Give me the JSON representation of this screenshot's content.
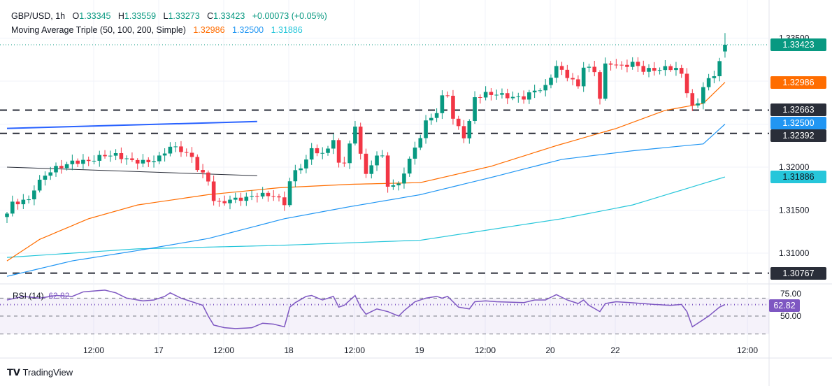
{
  "header": {
    "symbol": "GBP/USD, 1h",
    "o_label": "O",
    "o": "1.33345",
    "h_label": "H",
    "h": "1.33559",
    "l_label": "L",
    "l": "1.33273",
    "c_label": "C",
    "c": "1.33423",
    "change": "+0.00073 (+0.05%)",
    "ma_title": "Moving Average Triple (50, 100, 200, Simple)",
    "ma50": "1.32986",
    "ma100": "1.32500",
    "ma200": "1.31886"
  },
  "rsi": {
    "title": "RSI (14)",
    "value": "62.82",
    "levels": [
      "75.00",
      "50.00"
    ]
  },
  "brand": "TradingView",
  "colors": {
    "bull": "#089981",
    "bear": "#f23645",
    "ma50": "#ff6d00",
    "ma100": "#2196f3",
    "ma200": "#26c6da",
    "rsi": "#7e57c2",
    "level": "#2a2e39"
  },
  "chart_data": {
    "type": "candlestick",
    "title": "GBP/USD, 1h",
    "ylim": [
      1.305,
      1.3365
    ],
    "price_ticks": [
      "1.33500",
      "1.32000",
      "1.31500",
      "1.31000"
    ],
    "x_ticks": [
      "12:00",
      "17",
      "12:00",
      "18",
      "12:00",
      "19",
      "12:00",
      "20",
      "22",
      "12:00"
    ],
    "price_labels": [
      {
        "text": "1.33423",
        "value": 1.33423,
        "color": "#089981"
      },
      {
        "text": "1.32986",
        "value": 1.32986,
        "color": "#ff6d00"
      },
      {
        "text": "1.32663",
        "value": 1.32663,
        "color": "#2a2e39"
      },
      {
        "text": "1.32500",
        "value": 1.325,
        "color": "#2196f3"
      },
      {
        "text": "1.32392",
        "value": 1.32392,
        "color": "#2a2e39"
      },
      {
        "text": "1.31886",
        "value": 1.31886,
        "color": "#26c6da"
      },
      {
        "text": "1.30767",
        "value": 1.30767,
        "color": "#2a2e39"
      }
    ],
    "horizontal_levels": [
      1.32663,
      1.32392,
      1.30767
    ],
    "close_keypoints_hour_price": [
      [
        0,
        1.3146
      ],
      [
        1,
        1.3158
      ],
      [
        4,
        1.3162
      ],
      [
        5,
        1.3175
      ],
      [
        7,
        1.3191
      ],
      [
        9,
        1.3199
      ],
      [
        11,
        1.3203
      ],
      [
        12,
        1.3206
      ],
      [
        15,
        1.3207
      ],
      [
        18,
        1.3214
      ],
      [
        20,
        1.3214
      ],
      [
        23,
        1.3207
      ],
      [
        26,
        1.3206
      ],
      [
        28,
        1.3211
      ],
      [
        30,
        1.3224
      ],
      [
        32,
        1.322
      ],
      [
        34,
        1.3211
      ],
      [
        35,
        1.3199
      ],
      [
        37,
        1.3184
      ],
      [
        38,
        1.3162
      ],
      [
        39,
        1.3158
      ],
      [
        41,
        1.3162
      ],
      [
        44,
        1.3164
      ],
      [
        46,
        1.3168
      ],
      [
        49,
        1.3167
      ],
      [
        51,
        1.3158
      ],
      [
        52,
        1.3183
      ],
      [
        53,
        1.3195
      ],
      [
        55,
        1.3207
      ],
      [
        56,
        1.3222
      ],
      [
        58,
        1.3214
      ],
      [
        60,
        1.3232
      ],
      [
        61,
        1.3203
      ],
      [
        62,
        1.3207
      ],
      [
        64,
        1.3246
      ],
      [
        66,
        1.319
      ],
      [
        68,
        1.3215
      ],
      [
        69,
        1.3211
      ],
      [
        70,
        1.3179
      ],
      [
        72,
        1.3179
      ],
      [
        73,
        1.3195
      ],
      [
        75,
        1.3222
      ],
      [
        76,
        1.3236
      ],
      [
        77,
        1.3252
      ],
      [
        79,
        1.3264
      ],
      [
        80,
        1.3281
      ],
      [
        81,
        1.3285
      ],
      [
        82,
        1.3256
      ],
      [
        84,
        1.3236
      ],
      [
        85,
        1.3252
      ],
      [
        86,
        1.3281
      ],
      [
        88,
        1.3285
      ],
      [
        90,
        1.3285
      ],
      [
        93,
        1.3281
      ],
      [
        95,
        1.3281
      ],
      [
        97,
        1.3289
      ],
      [
        99,
        1.3293
      ],
      [
        101,
        1.3318
      ],
      [
        102,
        1.3311
      ],
      [
        104,
        1.3301
      ],
      [
        105,
        1.3293
      ],
      [
        106,
        1.3318
      ],
      [
        108,
        1.3311
      ],
      [
        109,
        1.3281
      ],
      [
        110,
        1.3318
      ],
      [
        111,
        1.3321
      ],
      [
        113,
        1.3317
      ],
      [
        115,
        1.3321
      ],
      [
        117,
        1.3313
      ],
      [
        119,
        1.3313
      ],
      [
        121,
        1.3315
      ],
      [
        123,
        1.3315
      ],
      [
        124,
        1.3307
      ],
      [
        126,
        1.327
      ],
      [
        127,
        1.3274
      ],
      [
        128,
        1.3295
      ],
      [
        130,
        1.3307
      ],
      [
        131,
        1.3324
      ],
      [
        132,
        1.3342
      ]
    ],
    "ma50_keypoints": [
      [
        0,
        1.3091
      ],
      [
        6,
        1.3116
      ],
      [
        15,
        1.314
      ],
      [
        24,
        1.3156
      ],
      [
        37,
        1.3168
      ],
      [
        50,
        1.3176
      ],
      [
        63,
        1.318
      ],
      [
        76,
        1.3182
      ],
      [
        89,
        1.3201
      ],
      [
        101,
        1.3225
      ],
      [
        112,
        1.3245
      ],
      [
        121,
        1.3266
      ],
      [
        128,
        1.3274
      ],
      [
        132,
        1.32986
      ]
    ],
    "ma100_keypoints": [
      [
        0,
        1.3073
      ],
      [
        12,
        1.3091
      ],
      [
        24,
        1.3103
      ],
      [
        37,
        1.3117
      ],
      [
        51,
        1.314
      ],
      [
        63,
        1.3154
      ],
      [
        76,
        1.3168
      ],
      [
        89,
        1.3188
      ],
      [
        102,
        1.3209
      ],
      [
        115,
        1.3219
      ],
      [
        128,
        1.3227
      ],
      [
        132,
        1.325
      ]
    ],
    "ma200_keypoints": [
      [
        0,
        1.3095
      ],
      [
        24,
        1.3105
      ],
      [
        50,
        1.3109
      ],
      [
        76,
        1.3115
      ],
      [
        102,
        1.314
      ],
      [
        115,
        1.3156
      ],
      [
        132,
        1.31886
      ]
    ],
    "trendlines": [
      {
        "color": "#2962ff",
        "from": [
          0,
          1.3245
        ],
        "to": [
          46,
          1.3253
        ]
      },
      {
        "color": "#2a2e39",
        "from": [
          0,
          1.32
        ],
        "to": [
          46,
          1.319
        ]
      }
    ],
    "rsi_keypoints": [
      [
        0,
        68
      ],
      [
        3,
        72
      ],
      [
        6,
        70
      ],
      [
        9,
        73
      ],
      [
        12,
        72
      ],
      [
        14,
        77
      ],
      [
        18,
        79
      ],
      [
        20,
        76
      ],
      [
        22,
        70
      ],
      [
        25,
        67
      ],
      [
        27,
        68
      ],
      [
        29,
        72
      ],
      [
        30,
        76
      ],
      [
        32,
        70
      ],
      [
        34,
        66
      ],
      [
        36,
        62
      ],
      [
        37,
        50
      ],
      [
        38,
        40
      ],
      [
        40,
        37
      ],
      [
        42,
        36
      ],
      [
        45,
        37
      ],
      [
        47,
        42
      ],
      [
        49,
        41
      ],
      [
        51,
        38
      ],
      [
        52,
        60
      ],
      [
        53,
        65
      ],
      [
        55,
        72
      ],
      [
        56,
        73
      ],
      [
        58,
        68
      ],
      [
        60,
        72
      ],
      [
        61,
        60
      ],
      [
        62,
        62
      ],
      [
        64,
        73
      ],
      [
        65,
        60
      ],
      [
        66,
        52
      ],
      [
        68,
        58
      ],
      [
        70,
        55
      ],
      [
        72,
        50
      ],
      [
        73,
        56
      ],
      [
        75,
        66
      ],
      [
        77,
        70
      ],
      [
        79,
        72
      ],
      [
        80,
        70
      ],
      [
        81,
        72
      ],
      [
        83,
        60
      ],
      [
        85,
        58
      ],
      [
        86,
        66
      ],
      [
        88,
        67
      ],
      [
        90,
        66
      ],
      [
        95,
        65
      ],
      [
        97,
        68
      ],
      [
        99,
        68
      ],
      [
        101,
        74
      ],
      [
        103,
        68
      ],
      [
        105,
        64
      ],
      [
        106,
        68
      ],
      [
        107,
        62
      ],
      [
        109,
        55
      ],
      [
        110,
        64
      ],
      [
        112,
        66
      ],
      [
        117,
        64
      ],
      [
        119,
        63
      ],
      [
        122,
        62
      ],
      [
        124,
        63
      ],
      [
        125,
        55
      ],
      [
        126,
        38
      ],
      [
        127,
        42
      ],
      [
        129,
        50
      ],
      [
        131,
        60
      ],
      [
        132,
        62.82
      ]
    ]
  }
}
